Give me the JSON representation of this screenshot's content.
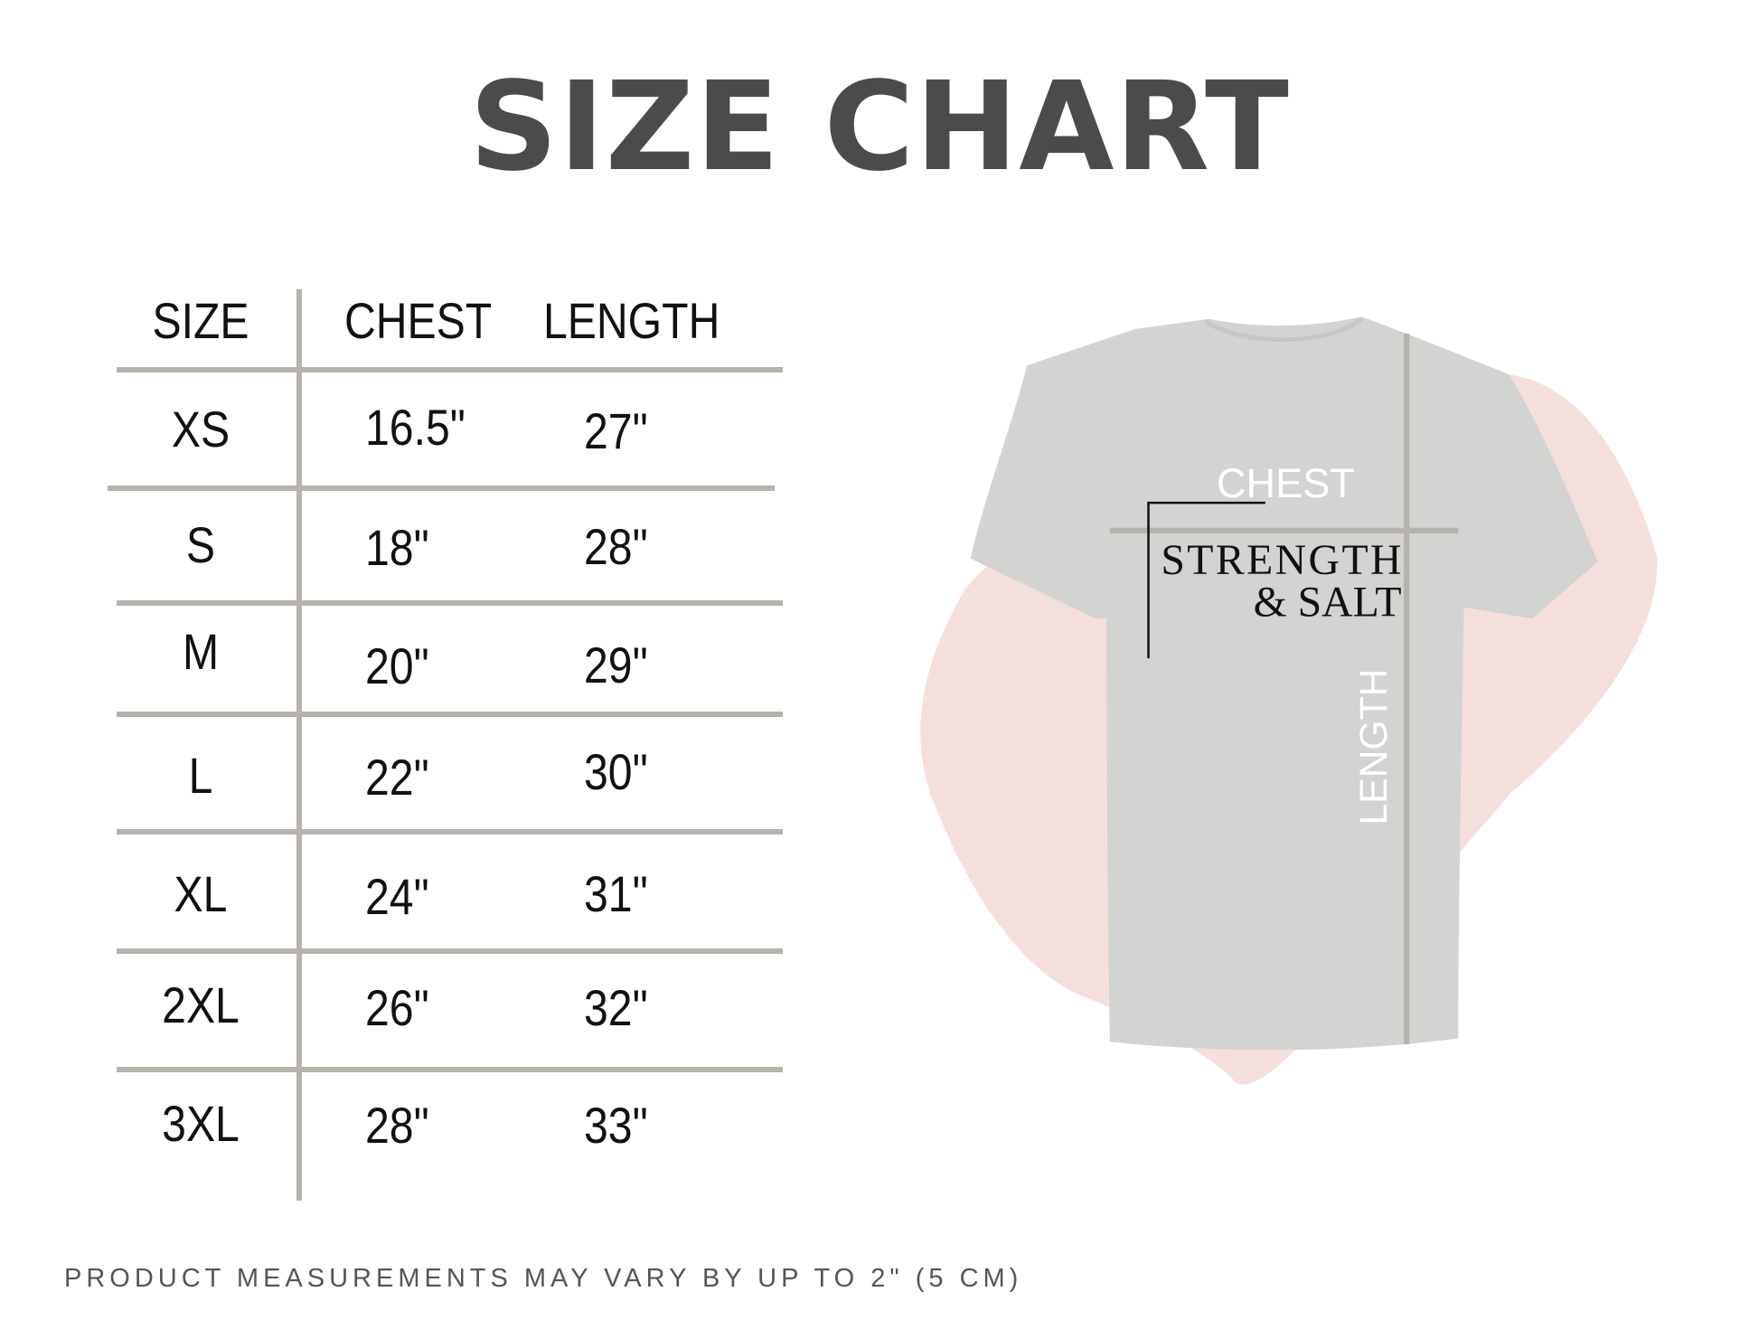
{
  "title": "SIZE CHART",
  "table": {
    "headers": [
      "SIZE",
      "CHEST",
      "LENGTH"
    ],
    "rows": [
      {
        "size": "XS",
        "chest": "16.5\"",
        "length": "27\""
      },
      {
        "size": "S",
        "chest": "18\"",
        "length": "28\""
      },
      {
        "size": "M",
        "chest": "20\"",
        "length": "29\""
      },
      {
        "size": "L",
        "chest": "22\"",
        "length": "30\""
      },
      {
        "size": "XL",
        "chest": "24\"",
        "length": "31\""
      },
      {
        "size": "2XL",
        "chest": "26\"",
        "length": "32\""
      },
      {
        "size": "3XL",
        "chest": "28\"",
        "length": "33\""
      }
    ]
  },
  "illustration": {
    "chest_label": "CHEST",
    "length_label": "LENGTH",
    "shirt_print_line1": "STRENGTH",
    "shirt_print_line2": "& SALT",
    "shirt_color": "#d3d3d1",
    "blob_color": "#f5dfdd",
    "line_color": "#b7b2ab"
  },
  "footer": "PRODUCT MEASUREMENTS MAY VARY BY UP TO 2\" (5 CM)"
}
